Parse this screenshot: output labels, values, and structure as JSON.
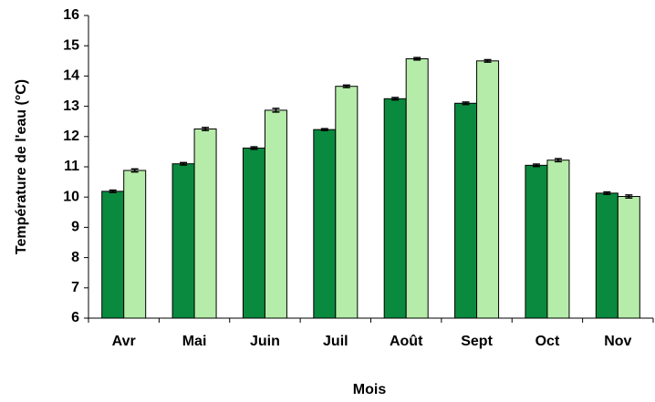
{
  "chart_data": {
    "type": "bar",
    "x_label": "Mois",
    "y_label": "Température de l'eau  (°C)",
    "categories": [
      "Avr",
      "Mai",
      "Juin",
      "Juil",
      "Août",
      "Sept",
      "Oct",
      "Nov"
    ],
    "series": [
      {
        "color": "#0a8a3e",
        "values": [
          10.19,
          11.1,
          11.62,
          12.23,
          13.25,
          13.1,
          11.05,
          10.13
        ],
        "errors": [
          0.04,
          0.04,
          0.04,
          0.03,
          0.04,
          0.04,
          0.04,
          0.04
        ]
      },
      {
        "color": "#b5eca9",
        "values": [
          10.88,
          12.25,
          12.87,
          13.66,
          14.57,
          14.5,
          11.22,
          10.02
        ],
        "errors": [
          0.05,
          0.05,
          0.06,
          0.04,
          0.04,
          0.04,
          0.05,
          0.05
        ]
      }
    ],
    "ylim": [
      6,
      16
    ],
    "yticks": [
      6,
      7,
      8,
      9,
      10,
      11,
      12,
      13,
      14,
      15,
      16
    ],
    "grid": false
  }
}
